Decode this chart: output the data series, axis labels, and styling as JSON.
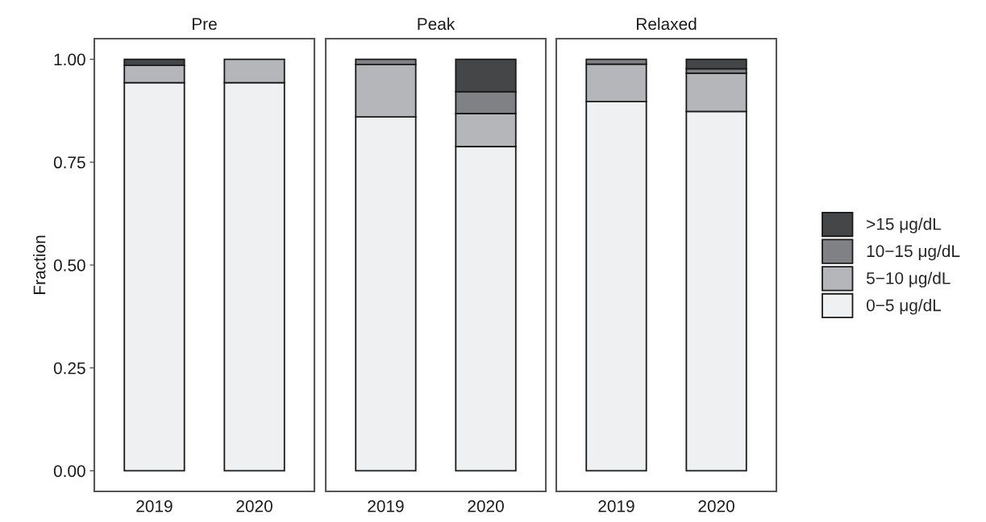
{
  "chart_data": [
    {
      "type": "bar",
      "title": "Pre",
      "ylabel": "Fraction",
      "categories": [
        "2019",
        "2020"
      ],
      "stacked": true,
      "ylim": [
        -0.05,
        1.05
      ],
      "yticks": [
        {
          "value": 0,
          "label": "0.00"
        },
        {
          "value": 0.25,
          "label": "0.25"
        },
        {
          "value": 0.5,
          "label": "0.50"
        },
        {
          "value": 0.75,
          "label": "0.75"
        },
        {
          "value": 1,
          "label": "1.00"
        }
      ],
      "grid": false,
      "legend": false,
      "series": [
        {
          "color": "#eff0f1",
          "values": [
            0.943,
            0.943
          ]
        },
        {
          "color": "#b5b6b9",
          "values": [
            0.042,
            0.057
          ]
        },
        {
          "color": "#454648",
          "values": [
            0.015,
            null
          ]
        }
      ]
    },
    {
      "type": "bar",
      "title": "Peak",
      "categories": [
        "2019",
        "2020"
      ],
      "stacked": true,
      "ylim": [
        -0.05,
        1.05
      ],
      "tick_labels": "x",
      "grid": false,
      "legend": false,
      "series": [
        {
          "color": "#eff0f1",
          "values": [
            0.86,
            0.788
          ]
        },
        {
          "color": "#b5b6b9",
          "values": [
            0.127,
            0.08
          ]
        },
        {
          "color": "#808184",
          "values": [
            0.013,
            0.053
          ]
        },
        {
          "color": "#454648",
          "values": [
            null,
            0.079
          ]
        }
      ]
    },
    {
      "type": "bar",
      "title": "Relaxed",
      "categories": [
        "2019",
        "2020"
      ],
      "stacked": true,
      "ylim": [
        -0.05,
        1.05
      ],
      "tick_labels": "x",
      "grid": false,
      "legend": "right",
      "series": [
        {
          "name": "0−5 μg/dL",
          "color": "#eff0f1",
          "values": [
            0.897,
            0.873
          ]
        },
        {
          "name": "5−10 μg/dL",
          "color": "#b5b6b9",
          "values": [
            0.091,
            0.093
          ]
        },
        {
          "name": "10−15 μg/dL",
          "color": "#808184",
          "values": [
            0.012,
            0.011
          ]
        },
        {
          "name": ">15 μg/dL",
          "color": "#454648",
          "values": [
            null,
            0.023
          ]
        }
      ]
    }
  ]
}
